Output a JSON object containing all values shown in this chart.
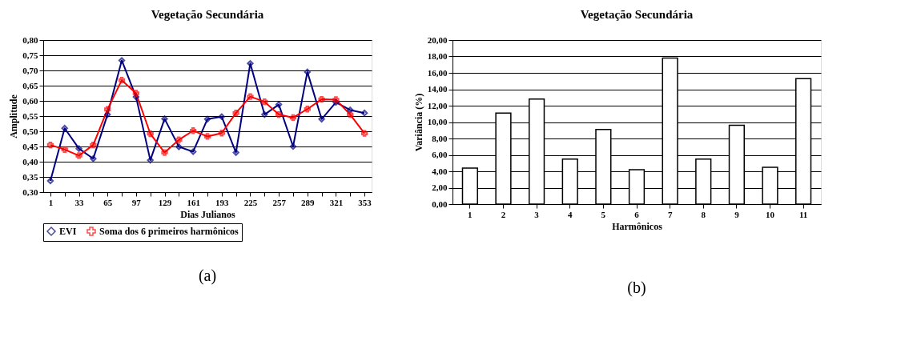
{
  "chart_data": [
    {
      "type": "line",
      "title": "Vegetação Secundária",
      "xlabel": "Dias Julianos",
      "ylabel": "Amplitude",
      "categories": [
        "1",
        null,
        "33",
        null,
        "65",
        null,
        "97",
        null,
        "129",
        null,
        "161",
        null,
        "193",
        null,
        "225",
        null,
        "257",
        null,
        "289",
        null,
        "321",
        null,
        "353"
      ],
      "series": [
        {
          "name": "EVI",
          "color": "#000080",
          "marker": "diamond",
          "values": [
            0.337,
            0.51,
            0.443,
            0.41,
            0.555,
            0.733,
            0.613,
            0.405,
            0.541,
            0.449,
            0.433,
            0.54,
            0.548,
            0.43,
            0.723,
            0.555,
            0.588,
            0.45,
            0.695,
            0.54,
            0.595,
            0.57,
            0.56
          ]
        },
        {
          "name": "Soma dos 6 primeiros harmônicos",
          "color": "#ff0000",
          "marker": "cross",
          "values": [
            0.455,
            0.44,
            0.42,
            0.455,
            0.572,
            0.668,
            0.625,
            0.492,
            0.43,
            0.472,
            0.502,
            0.483,
            0.494,
            0.56,
            0.614,
            0.597,
            0.555,
            0.545,
            0.573,
            0.605,
            0.604,
            0.555,
            0.493
          ]
        }
      ],
      "ylim": [
        0.3,
        0.8
      ],
      "yticks": [
        {
          "value": 0.3,
          "label": "0,30"
        },
        {
          "value": 0.35,
          "label": "0,35"
        },
        {
          "value": 0.4,
          "label": "0,40"
        },
        {
          "value": 0.45,
          "label": "0,45"
        },
        {
          "value": 0.5,
          "label": "0,50"
        },
        {
          "value": 0.55,
          "label": "0,55"
        },
        {
          "value": 0.6,
          "label": "0,60"
        },
        {
          "value": 0.65,
          "label": "0,65"
        },
        {
          "value": 0.7,
          "label": "0,70"
        },
        {
          "value": 0.75,
          "label": "0,75"
        },
        {
          "value": 0.8,
          "label": "0,80"
        }
      ],
      "grid": "y",
      "legend": "bottom",
      "annotations": [
        "(a)"
      ]
    },
    {
      "type": "bar",
      "title": "Vegetação Secundária",
      "xlabel": "Harmônicos",
      "ylabel": "Variância (%)",
      "categories": [
        "1",
        "2",
        "3",
        "4",
        "5",
        "6",
        "7",
        "8",
        "9",
        "10",
        "11"
      ],
      "values": [
        4.4,
        11.1,
        12.8,
        5.5,
        9.1,
        4.2,
        17.8,
        5.5,
        9.6,
        4.5,
        15.3
      ],
      "color": "#ffffff",
      "ylim": [
        0,
        20
      ],
      "yticks": [
        {
          "value": 0,
          "label": "0,00"
        },
        {
          "value": 2,
          "label": "2,00"
        },
        {
          "value": 4,
          "label": "4,00"
        },
        {
          "value": 6,
          "label": "6,00"
        },
        {
          "value": 8,
          "label": "8,00"
        },
        {
          "value": 10,
          "label": "10,00"
        },
        {
          "value": 12,
          "label": "12,00"
        },
        {
          "value": 14,
          "label": "14,00"
        },
        {
          "value": 16,
          "label": "16,00"
        },
        {
          "value": 18,
          "label": "18,00"
        },
        {
          "value": 20,
          "label": "20,00"
        }
      ],
      "grid": "y",
      "annotations": [
        "(b)"
      ]
    }
  ]
}
